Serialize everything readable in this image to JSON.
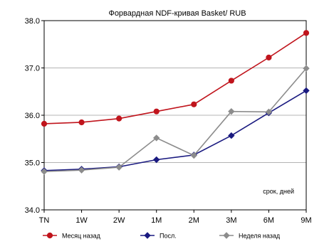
{
  "chart_data": {
    "type": "line",
    "title": "Форвардная NDF-кривая Basket/ RUB",
    "xlabel": "",
    "ylabel": "",
    "x_note": "срок, дней",
    "categories": [
      "TN",
      "1W",
      "2W",
      "1M",
      "2M",
      "3M",
      "6M",
      "9M"
    ],
    "ylim": [
      34.0,
      38.0
    ],
    "yticks": [
      "34.0",
      "35.0",
      "36.0",
      "37.0",
      "38.0"
    ],
    "ytick_values": [
      34.0,
      35.0,
      36.0,
      37.0,
      38.0
    ],
    "grid": "horizontal",
    "legend_position": "bottom",
    "series": [
      {
        "name": "Месяц назад",
        "color": "#c0141c",
        "marker": "circle",
        "values": [
          35.82,
          35.85,
          35.93,
          36.08,
          36.23,
          36.73,
          37.22,
          37.74
        ]
      },
      {
        "name": "Посл.",
        "color": "#1a1a80",
        "marker": "diamond",
        "values": [
          34.83,
          34.86,
          34.91,
          35.06,
          35.16,
          35.57,
          36.05,
          36.52
        ]
      },
      {
        "name": "Неделя назад",
        "color": "#8c8c8c",
        "marker": "diamond",
        "values": [
          34.81,
          34.84,
          34.9,
          35.52,
          35.15,
          36.08,
          36.07,
          36.99
        ]
      }
    ]
  }
}
